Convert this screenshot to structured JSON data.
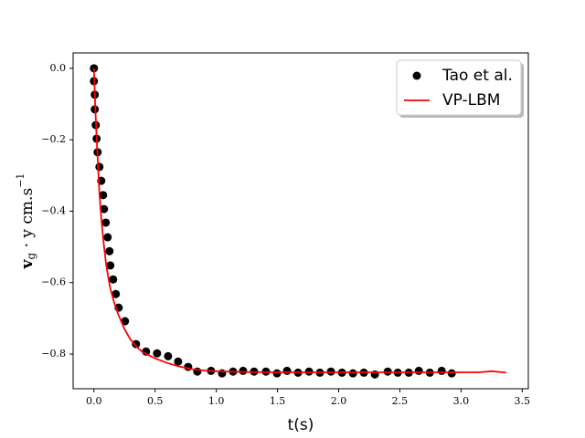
{
  "chart_data": {
    "type": "scatter_line",
    "xlabel": "t(s)",
    "ylabel": {
      "main": "v",
      "sub": "g",
      "mid": " · y cm.s",
      "sup": "−1"
    },
    "xlim": [
      -0.17,
      3.55
    ],
    "ylim": [
      -0.897,
      0.043
    ],
    "xticks": [
      {
        "value": 0,
        "label": "0.0"
      },
      {
        "value": 0.5,
        "label": "0.5"
      },
      {
        "value": 1,
        "label": "1.0"
      },
      {
        "value": 1.5,
        "label": "1.5"
      },
      {
        "value": 2,
        "label": "2.0"
      },
      {
        "value": 2.5,
        "label": "2.5"
      },
      {
        "value": 3,
        "label": "3.0"
      },
      {
        "value": 3.5,
        "label": "3.5"
      }
    ],
    "yticks": [
      {
        "value": 0,
        "label": "0.0"
      },
      {
        "value": -0.2,
        "label": "−0.2"
      },
      {
        "value": -0.4,
        "label": "−0.4"
      },
      {
        "value": -0.6,
        "label": "−0.6"
      },
      {
        "value": -0.8,
        "label": "−0.8"
      }
    ],
    "legend": "upper right",
    "series": [
      {
        "name": "Tao et al.",
        "kind": "scatter",
        "color": "#000000",
        "x": [
          0,
          0,
          0.007,
          0.007,
          0.015,
          0.022,
          0.03,
          0.045,
          0.06,
          0.075,
          0.082,
          0.097,
          0.112,
          0.127,
          0.134,
          0.157,
          0.179,
          0.202,
          0.254,
          0.344,
          0.426,
          0.516,
          0.606,
          0.688,
          0.77,
          0.845,
          0.957,
          1.047,
          1.137,
          1.219,
          1.309,
          1.406,
          1.496,
          1.578,
          1.668,
          1.758,
          1.847,
          1.937,
          2.027,
          2.117,
          2.206,
          2.296,
          2.401,
          2.483,
          2.573,
          2.655,
          2.745,
          2.842,
          2.924
        ],
        "values": [
          0,
          -0.036,
          -0.074,
          -0.115,
          -0.159,
          -0.197,
          -0.235,
          -0.276,
          -0.315,
          -0.355,
          -0.394,
          -0.432,
          -0.473,
          -0.512,
          -0.552,
          -0.591,
          -0.632,
          -0.67,
          -0.708,
          -0.772,
          -0.793,
          -0.798,
          -0.806,
          -0.821,
          -0.836,
          -0.849,
          -0.847,
          -0.854,
          -0.849,
          -0.847,
          -0.849,
          -0.849,
          -0.854,
          -0.847,
          -0.852,
          -0.849,
          -0.852,
          -0.849,
          -0.852,
          -0.854,
          -0.852,
          -0.857,
          -0.849,
          -0.852,
          -0.852,
          -0.847,
          -0.852,
          -0.847,
          -0.854
        ]
      },
      {
        "name": "VP-LBM",
        "kind": "line",
        "color": "#ff0000",
        "x": [
          0,
          0.01,
          0.02,
          0.03,
          0.045,
          0.06,
          0.08,
          0.1,
          0.13,
          0.16,
          0.2,
          0.25,
          0.3,
          0.35,
          0.4,
          0.5,
          0.6,
          0.7,
          0.8,
          0.9,
          1.0,
          1.2,
          1.5,
          2.0,
          2.5,
          3.0,
          3.15,
          3.25,
          3.37
        ],
        "values": [
          0,
          -0.1,
          -0.18,
          -0.25,
          -0.35,
          -0.42,
          -0.49,
          -0.55,
          -0.61,
          -0.65,
          -0.69,
          -0.73,
          -0.76,
          -0.78,
          -0.795,
          -0.812,
          -0.825,
          -0.835,
          -0.842,
          -0.846,
          -0.848,
          -0.85,
          -0.851,
          -0.851,
          -0.851,
          -0.851,
          -0.851,
          -0.848,
          -0.852
        ]
      }
    ]
  }
}
